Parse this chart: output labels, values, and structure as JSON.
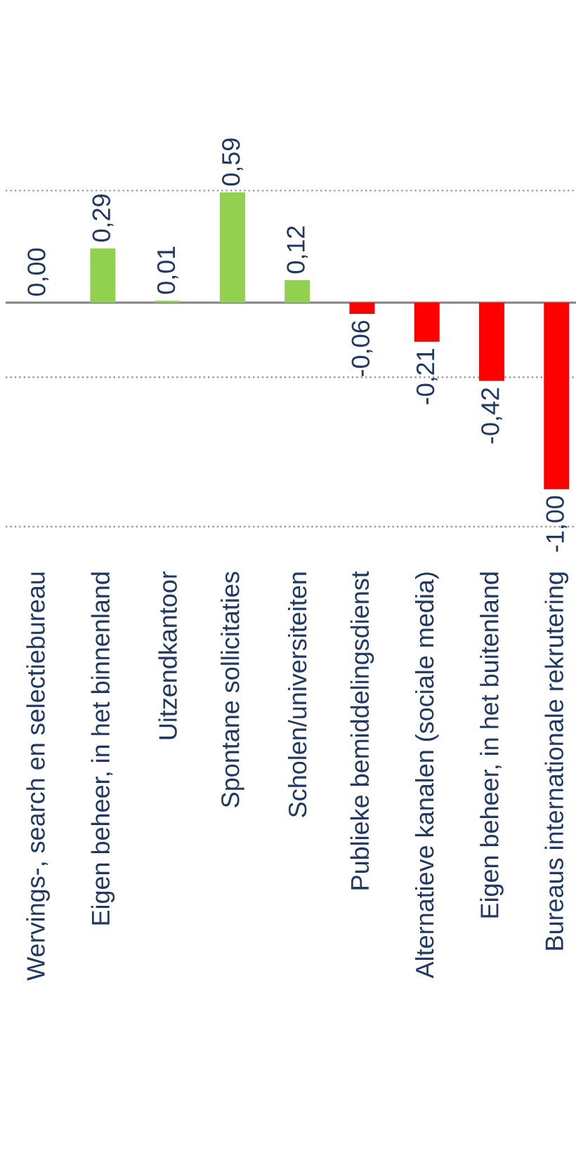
{
  "chart_data": {
    "type": "bar",
    "categories": [
      "Wervings-, search en selectiebureau",
      "Eigen beheer, in het binnenland",
      "Uitzendkantoor",
      "Spontane sollicitaties",
      "Scholen/universiteiten",
      "Publieke bemiddelingsdienst",
      "Alternatieve kanalen (sociale media)",
      "Eigen beheer, in het buitenland",
      "Bureaus internationale rekrutering"
    ],
    "values": [
      0.0,
      0.29,
      0.01,
      0.59,
      0.12,
      -0.06,
      -0.21,
      -0.42,
      -1.0
    ],
    "colors": [
      "#92d050",
      "#92d050",
      "#92d050",
      "#92d050",
      "#92d050",
      "#ff0000",
      "#ff0000",
      "#ff0000",
      "#ff0000"
    ],
    "value_labels": [
      "0,00",
      "0,29",
      "0,01",
      "0,59",
      "0,12",
      "-0,06",
      "-0,21",
      "-0,42",
      "-1,00"
    ],
    "ref_lines": [
      {
        "axis": "y",
        "value": 0.6,
        "color": "#999999",
        "line_style": "dotted"
      },
      {
        "axis": "y",
        "value": -0.4,
        "color": "#999999",
        "line_style": "dotted"
      },
      {
        "axis": "y",
        "value": -1.2,
        "color": "#999999",
        "line_style": "dotted"
      }
    ],
    "tick_labels": "x"
  }
}
